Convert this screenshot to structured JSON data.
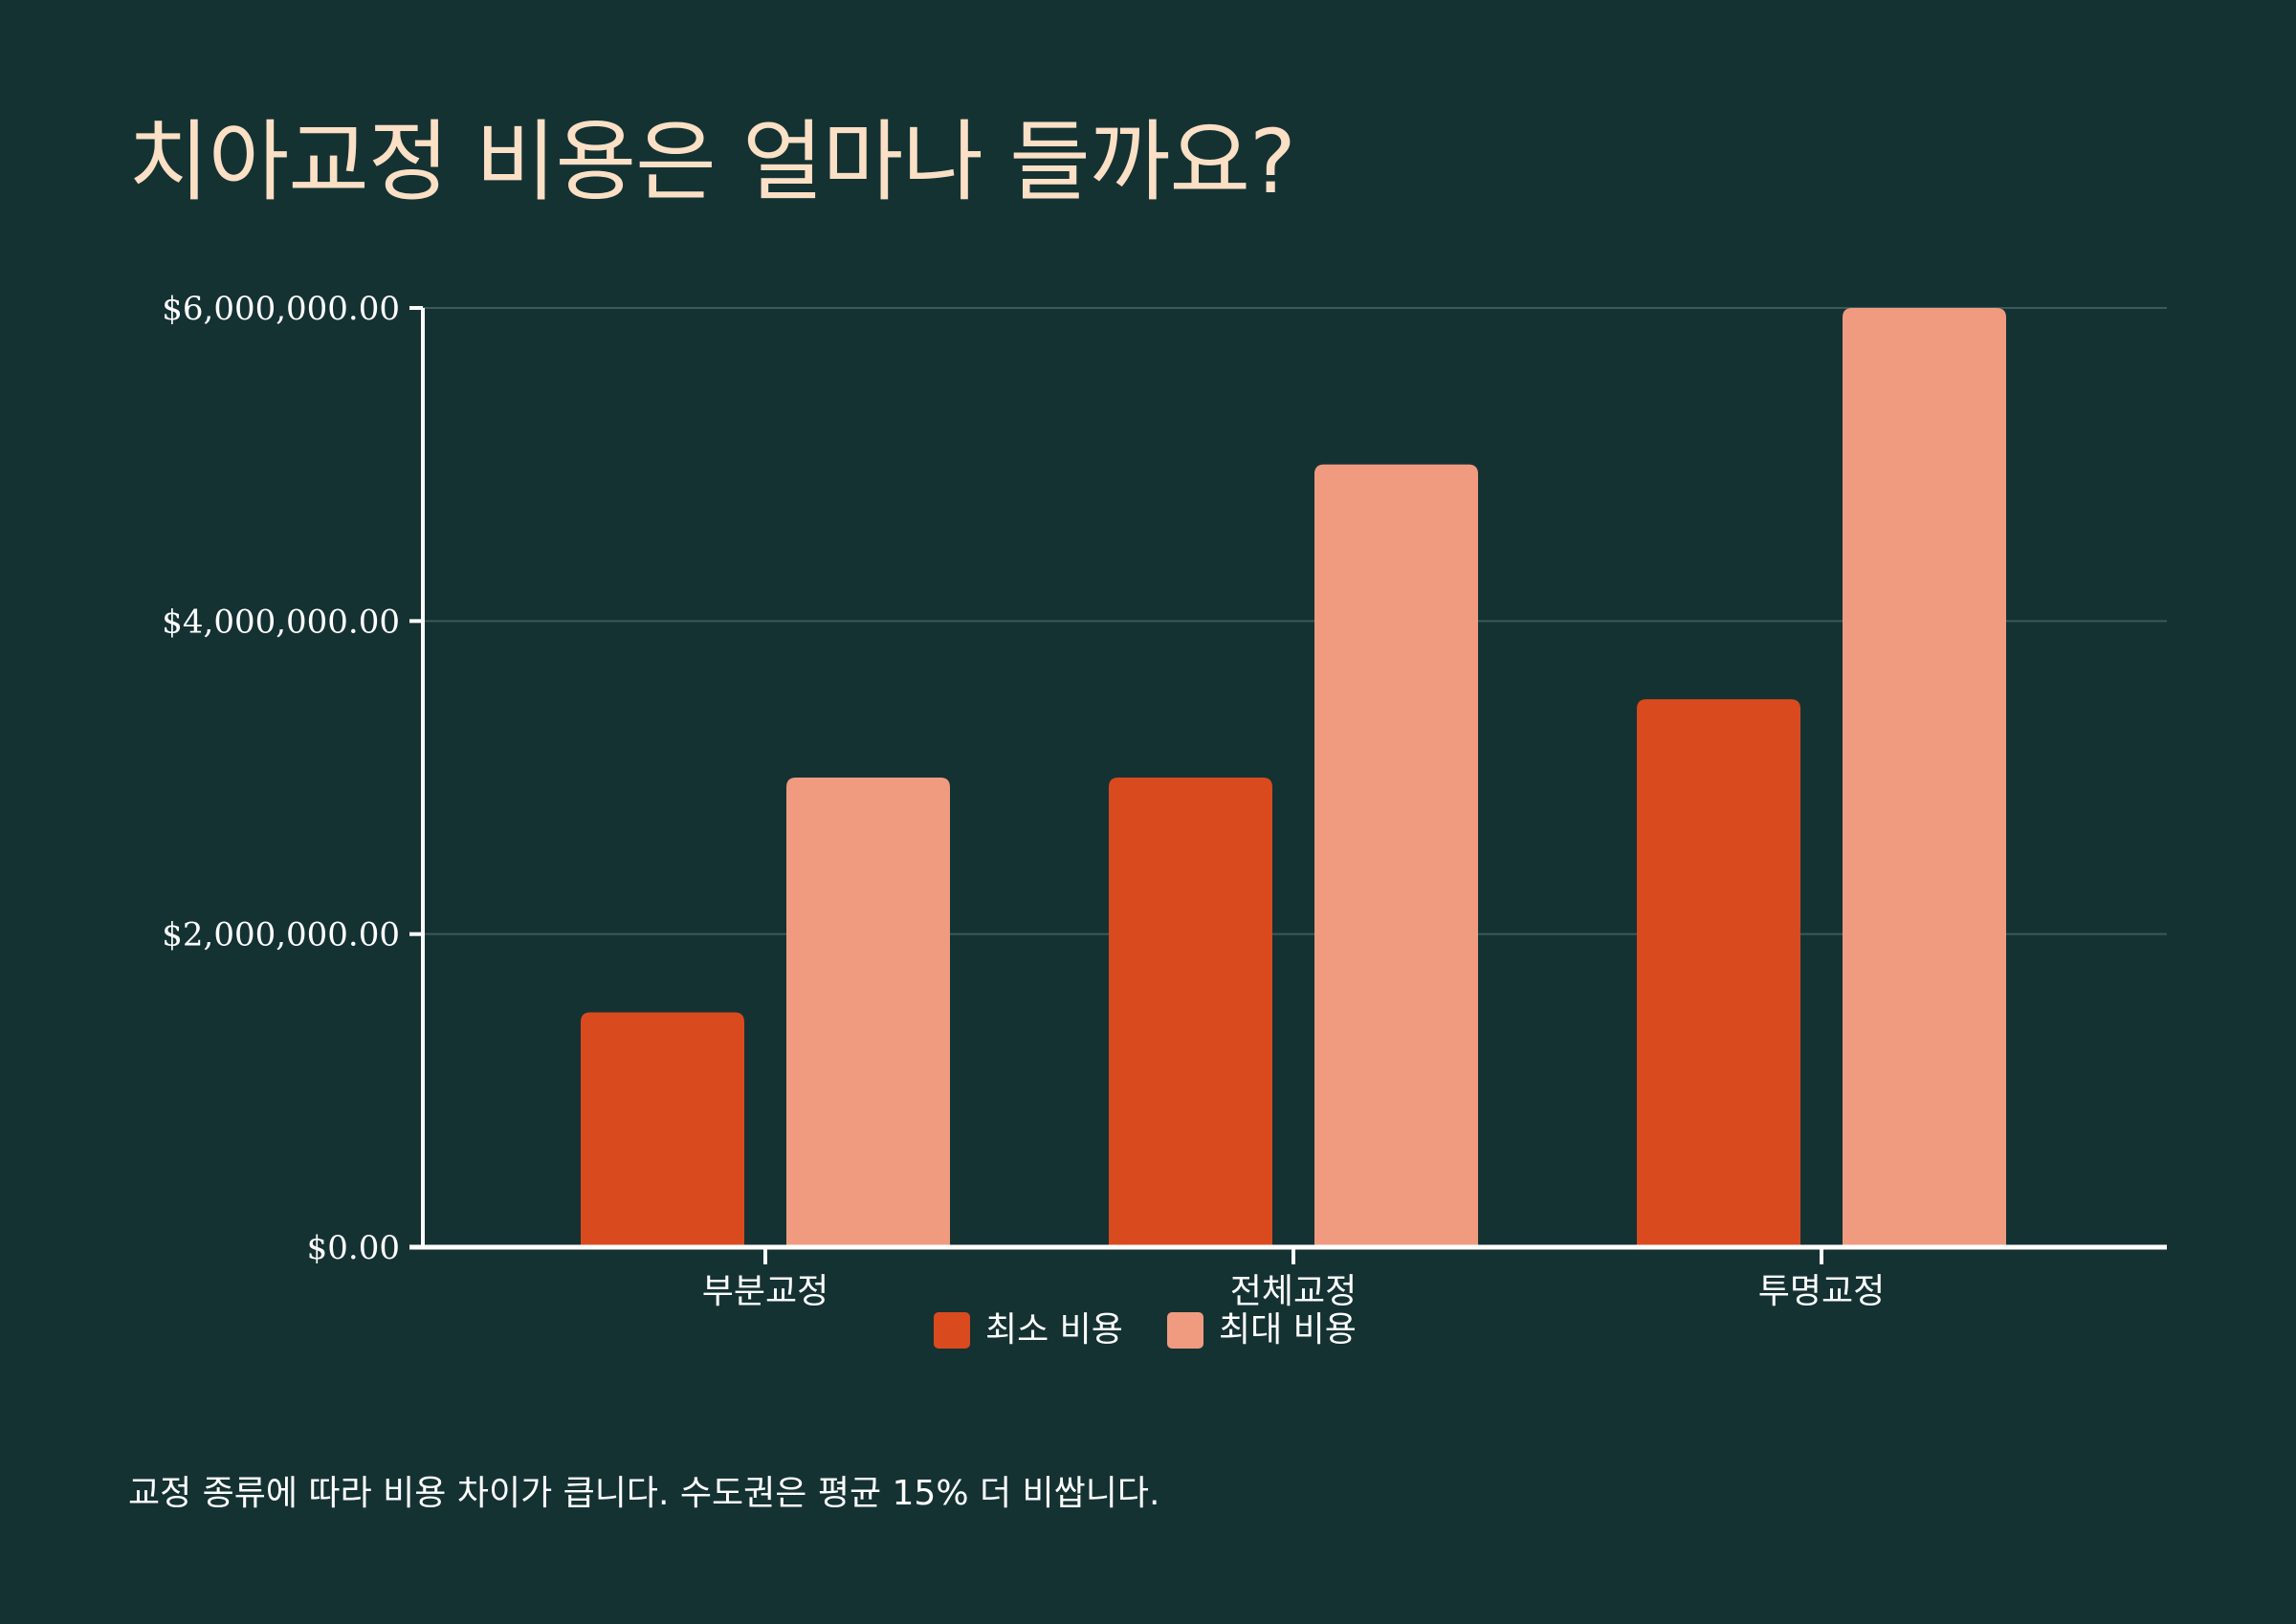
{
  "page": {
    "title": "치아교정 비용은 얼마나 들까요?",
    "footer_note": "교정 종류에 따라 비용 차이가 큽니다. 수도권은 평균 15% 더 비쌉니다."
  },
  "colors": {
    "background": "#153233",
    "title": "#fbe0c6",
    "min_series": "#da4a1f",
    "max_series": "#f09b80",
    "axis": "#ffffff",
    "grid": "#3c5a59",
    "text": "#ffffff"
  },
  "chart_data": {
    "type": "bar",
    "categories": [
      "부분교정",
      "전체교정",
      "투명교정"
    ],
    "series": [
      {
        "name": "최소 비용",
        "values": [
          1500000,
          3000000,
          3500000
        ]
      },
      {
        "name": "최대 비용",
        "values": [
          3000000,
          5000000,
          6000000
        ]
      }
    ],
    "ylim": [
      0,
      6000000
    ],
    "y_ticks": [
      0,
      2000000,
      4000000,
      6000000
    ],
    "y_tick_labels": [
      "$0.00",
      "$2,000,000.00",
      "$4,000,000.00",
      "$6,000,000.00"
    ],
    "grid": true,
    "legend_position": "bottom-center"
  }
}
